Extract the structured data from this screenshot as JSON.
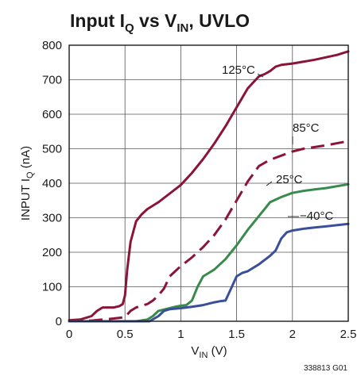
{
  "chart_data": {
    "type": "line",
    "title": {
      "main": "Input I",
      "sub": "Q",
      "mid": " vs V",
      "sub2": "IN",
      "tail": ", UVLO"
    },
    "xlabel": {
      "main": "V",
      "sub": "IN",
      "tail": " (V)"
    },
    "ylabel": {
      "main": "INPUT I",
      "sub": "Q",
      "tail": " (nA)"
    },
    "xlim": [
      0,
      2.5
    ],
    "ylim": [
      0,
      800
    ],
    "x_ticks": [
      0,
      0.5,
      1,
      1.5,
      2,
      2.5
    ],
    "x_tick_labels": [
      "0",
      "0.5",
      "1",
      "1.5",
      "2",
      "2.5"
    ],
    "y_ticks": [
      0,
      100,
      200,
      300,
      400,
      500,
      600,
      700,
      800
    ],
    "y_tick_labels": [
      "0",
      "100",
      "200",
      "300",
      "400",
      "500",
      "600",
      "700",
      "800"
    ],
    "grid": true,
    "figure_code": "338813 G01",
    "series": [
      {
        "name": "125°C",
        "color": "#8a1538",
        "dash": "solid",
        "points": [
          [
            0,
            3
          ],
          [
            0.1,
            5
          ],
          [
            0.2,
            15
          ],
          [
            0.25,
            30
          ],
          [
            0.3,
            40
          ],
          [
            0.35,
            40
          ],
          [
            0.4,
            40
          ],
          [
            0.45,
            44
          ],
          [
            0.48,
            50
          ],
          [
            0.5,
            75
          ],
          [
            0.52,
            150
          ],
          [
            0.55,
            230
          ],
          [
            0.6,
            290
          ],
          [
            0.65,
            310
          ],
          [
            0.7,
            325
          ],
          [
            0.8,
            345
          ],
          [
            0.9,
            370
          ],
          [
            1.0,
            395
          ],
          [
            1.1,
            430
          ],
          [
            1.2,
            470
          ],
          [
            1.3,
            515
          ],
          [
            1.4,
            565
          ],
          [
            1.5,
            620
          ],
          [
            1.6,
            675
          ],
          [
            1.7,
            710
          ],
          [
            1.75,
            716
          ],
          [
            1.8,
            725
          ],
          [
            1.85,
            738
          ],
          [
            1.9,
            743
          ],
          [
            2.0,
            747
          ],
          [
            2.2,
            758
          ],
          [
            2.4,
            772
          ],
          [
            2.5,
            782
          ]
        ]
      },
      {
        "name": "85°C",
        "color": "#8a1538",
        "dash": "dashed",
        "points": [
          [
            0,
            2
          ],
          [
            0.2,
            2
          ],
          [
            0.3,
            5
          ],
          [
            0.4,
            8
          ],
          [
            0.5,
            12
          ],
          [
            0.55,
            30
          ],
          [
            0.6,
            40
          ],
          [
            0.65,
            45
          ],
          [
            0.7,
            50
          ],
          [
            0.75,
            60
          ],
          [
            0.8,
            75
          ],
          [
            0.85,
            95
          ],
          [
            0.9,
            130
          ],
          [
            0.95,
            145
          ],
          [
            1.0,
            160
          ],
          [
            1.1,
            185
          ],
          [
            1.2,
            215
          ],
          [
            1.3,
            250
          ],
          [
            1.4,
            295
          ],
          [
            1.5,
            350
          ],
          [
            1.6,
            405
          ],
          [
            1.7,
            450
          ],
          [
            1.8,
            468
          ],
          [
            1.9,
            480
          ],
          [
            2.0,
            492
          ],
          [
            2.1,
            500
          ],
          [
            2.3,
            510
          ],
          [
            2.5,
            522
          ]
        ]
      },
      {
        "name": "25°C",
        "color": "#3a8a4e",
        "dash": "solid",
        "points": [
          [
            0,
            0
          ],
          [
            0.6,
            0
          ],
          [
            0.7,
            5
          ],
          [
            0.75,
            15
          ],
          [
            0.8,
            30
          ],
          [
            0.9,
            38
          ],
          [
            0.95,
            42
          ],
          [
            1.0,
            45
          ],
          [
            1.05,
            47
          ],
          [
            1.1,
            60
          ],
          [
            1.15,
            100
          ],
          [
            1.2,
            130
          ],
          [
            1.25,
            140
          ],
          [
            1.3,
            150
          ],
          [
            1.4,
            180
          ],
          [
            1.5,
            220
          ],
          [
            1.6,
            265
          ],
          [
            1.7,
            305
          ],
          [
            1.8,
            345
          ],
          [
            1.9,
            360
          ],
          [
            2.0,
            372
          ],
          [
            2.1,
            378
          ],
          [
            2.2,
            382
          ],
          [
            2.3,
            386
          ],
          [
            2.5,
            397
          ]
        ]
      },
      {
        "name": "−40°C",
        "color": "#3a4f9c",
        "dash": "solid",
        "points": [
          [
            0,
            0
          ],
          [
            0.72,
            0
          ],
          [
            0.8,
            15
          ],
          [
            0.85,
            30
          ],
          [
            0.9,
            35
          ],
          [
            1.0,
            38
          ],
          [
            1.1,
            42
          ],
          [
            1.2,
            47
          ],
          [
            1.3,
            55
          ],
          [
            1.35,
            58
          ],
          [
            1.4,
            60
          ],
          [
            1.45,
            95
          ],
          [
            1.5,
            130
          ],
          [
            1.55,
            140
          ],
          [
            1.6,
            145
          ],
          [
            1.7,
            165
          ],
          [
            1.8,
            190
          ],
          [
            1.85,
            205
          ],
          [
            1.9,
            240
          ],
          [
            1.95,
            258
          ],
          [
            2.0,
            263
          ],
          [
            2.1,
            268
          ],
          [
            2.2,
            272
          ],
          [
            2.3,
            275
          ],
          [
            2.5,
            282
          ]
        ]
      }
    ]
  }
}
